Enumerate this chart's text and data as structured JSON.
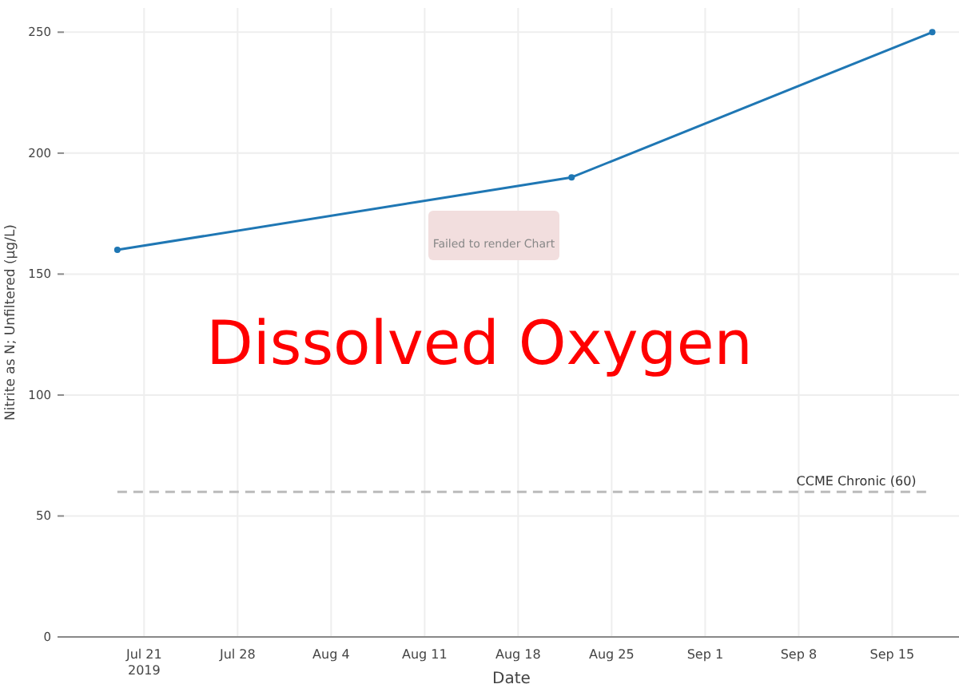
{
  "chart_data": {
    "type": "line",
    "xlabel": "Date",
    "ylabel": "Nitrite as N; Unfiltered (µg/L)",
    "x": [
      "2019-07-19",
      "2019-08-22",
      "2019-09-18"
    ],
    "series": [
      {
        "color": "#1f77b4",
        "values": [
          160,
          190,
          250
        ]
      }
    ],
    "xlim": [
      "2019-07-15",
      "2019-09-20"
    ],
    "xticks": [
      {
        "value": "2019-07-21",
        "label": "Jul 21\n2019"
      },
      {
        "value": "2019-07-28",
        "label": "Jul 28"
      },
      {
        "value": "2019-08-04",
        "label": "Aug 4"
      },
      {
        "value": "2019-08-11",
        "label": "Aug 11"
      },
      {
        "value": "2019-08-18",
        "label": "Aug 18"
      },
      {
        "value": "2019-08-25",
        "label": "Aug 25"
      },
      {
        "value": "2019-09-01",
        "label": "Sep 1"
      },
      {
        "value": "2019-09-08",
        "label": "Sep 8"
      },
      {
        "value": "2019-09-15",
        "label": "Sep 15"
      }
    ],
    "ylim": [
      0,
      260
    ],
    "yticks": [
      0,
      50,
      100,
      150,
      200,
      250
    ],
    "grid": true,
    "marker": "circle",
    "line_style": "solid",
    "ref_lines": [
      {
        "axis": "y",
        "value": 60,
        "label": "CCME Chronic (60)",
        "color": "#bbbbbb",
        "line_style": "dashed"
      }
    ],
    "annotations": [
      "Failed to render Chart",
      "Dissolved Oxygen"
    ]
  }
}
